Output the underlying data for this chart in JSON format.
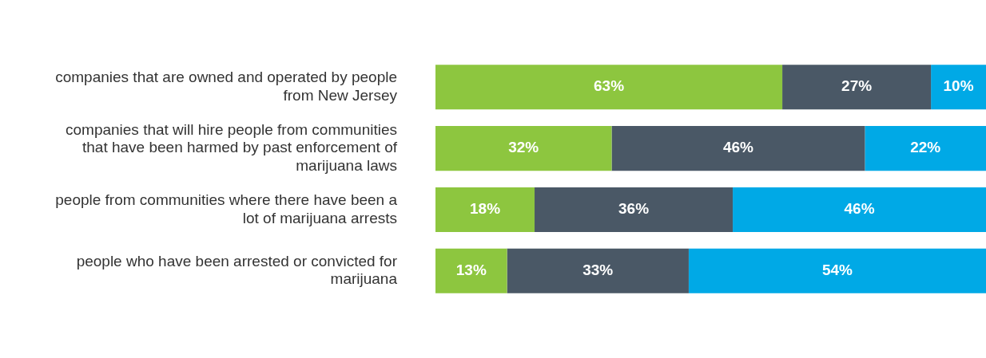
{
  "chart_data": {
    "type": "bar",
    "orientation": "horizontal",
    "stacked": true,
    "categories": [
      "companies that are owned and operated by people from New Jersey",
      "companies that will hire people from communities that have been harmed by past enforcement of marijuana laws",
      "people from communities where there have been a lot of marijuana arrests",
      "people who have been arrested or convicted for marijuana"
    ],
    "series": [
      {
        "color": "#8dc63f",
        "values": [
          63,
          32,
          18,
          13
        ],
        "value_labels": [
          "63%",
          "32%",
          "18%",
          "13%"
        ]
      },
      {
        "color": "#4a5866",
        "values": [
          27,
          46,
          36,
          33
        ],
        "value_labels": [
          "27%",
          "46%",
          "36%",
          "33%"
        ]
      },
      {
        "color": "#00a9e6",
        "values": [
          10,
          22,
          46,
          54
        ],
        "value_labels": [
          "10%",
          "22%",
          "46%",
          "54%"
        ]
      }
    ],
    "xlim": [
      0,
      100
    ],
    "tick_labels": "y"
  }
}
